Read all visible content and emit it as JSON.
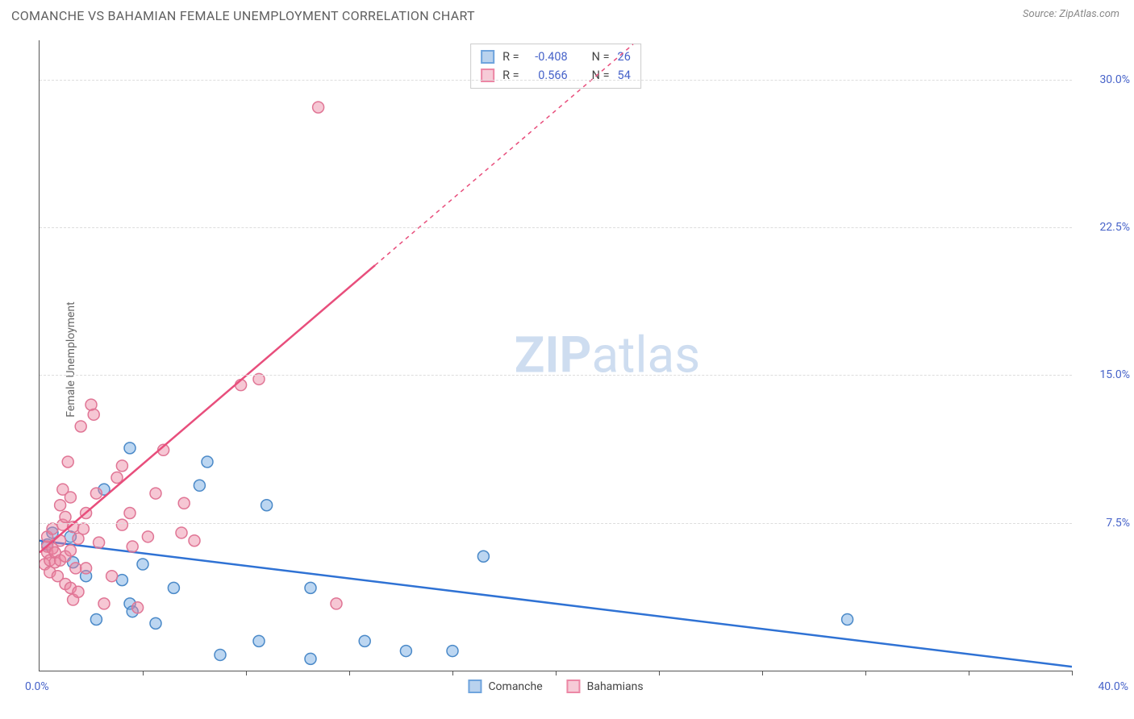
{
  "title": "COMANCHE VS BAHAMIAN FEMALE UNEMPLOYMENT CORRELATION CHART",
  "source": "Source: ZipAtlas.com",
  "yaxis_title": "Female Unemployment",
  "watermark_bold": "ZIP",
  "watermark_light": "atlas",
  "chart": {
    "type": "scatter-with-regression",
    "aspect_w": 1280,
    "aspect_h": 782,
    "background_color": "#ffffff",
    "grid_color": "#dddddd",
    "axis_color": "#555555",
    "tick_label_color": "#4763c9",
    "xlim": [
      0,
      40
    ],
    "ylim": [
      0,
      32
    ],
    "x_origin_label": "0.0%",
    "x_max_label": "40.0%",
    "yticks": [
      {
        "v": 7.5,
        "label": "7.5%"
      },
      {
        "v": 15.0,
        "label": "15.0%"
      },
      {
        "v": 22.5,
        "label": "22.5%"
      },
      {
        "v": 30.0,
        "label": "30.0%"
      }
    ],
    "xtick_positions": [
      4,
      8,
      12,
      16,
      20,
      24,
      28,
      32,
      36,
      40
    ],
    "series": [
      {
        "name": "Comanche",
        "fill": "rgba(106,165,224,0.45)",
        "stroke": "#4a89c8",
        "swatch_fill": "#b9d2ee",
        "swatch_stroke": "#6fa4dd",
        "line_color": "#2f72d4",
        "R_label": "R =",
        "R_value": "-0.408",
        "N_label": "N =",
        "N_value": "26",
        "radius": 7,
        "regression": {
          "x1": 0,
          "y1": 6.6,
          "x2": 40,
          "y2": 0.2,
          "solid_to_x": 40
        },
        "points": [
          [
            0.3,
            6.4
          ],
          [
            0.5,
            7.0
          ],
          [
            1.3,
            5.5
          ],
          [
            1.2,
            6.8
          ],
          [
            1.8,
            4.8
          ],
          [
            2.5,
            9.2
          ],
          [
            2.2,
            2.6
          ],
          [
            3.5,
            11.3
          ],
          [
            3.2,
            4.6
          ],
          [
            3.5,
            3.4
          ],
          [
            3.6,
            3.0
          ],
          [
            4.0,
            5.4
          ],
          [
            4.5,
            2.4
          ],
          [
            5.2,
            4.2
          ],
          [
            6.2,
            9.4
          ],
          [
            6.5,
            10.6
          ],
          [
            7.0,
            0.8
          ],
          [
            8.5,
            1.5
          ],
          [
            8.8,
            8.4
          ],
          [
            10.5,
            0.6
          ],
          [
            10.5,
            4.2
          ],
          [
            12.6,
            1.5
          ],
          [
            14.2,
            1.0
          ],
          [
            16.0,
            1.0
          ],
          [
            17.2,
            5.8
          ],
          [
            31.3,
            2.6
          ]
        ]
      },
      {
        "name": "Bahamians",
        "fill": "rgba(236,130,160,0.45)",
        "stroke": "#e07595",
        "swatch_fill": "#f6cbd7",
        "swatch_stroke": "#ec87a5",
        "line_color": "#e84e7c",
        "R_label": "R =",
        "R_value": "0.566",
        "N_label": "N =",
        "N_value": "54",
        "radius": 7,
        "regression": {
          "x1": 0,
          "y1": 6.0,
          "x2": 23,
          "y2": 31.8,
          "solid_to_x": 13
        },
        "points": [
          [
            0.2,
            5.4
          ],
          [
            0.3,
            6.0
          ],
          [
            0.3,
            6.3
          ],
          [
            0.3,
            6.8
          ],
          [
            0.4,
            5.0
          ],
          [
            0.4,
            5.6
          ],
          [
            0.5,
            6.2
          ],
          [
            0.5,
            7.2
          ],
          [
            0.6,
            5.5
          ],
          [
            0.6,
            6.0
          ],
          [
            0.7,
            4.8
          ],
          [
            0.8,
            5.6
          ],
          [
            0.8,
            6.6
          ],
          [
            0.8,
            8.4
          ],
          [
            0.9,
            7.4
          ],
          [
            0.9,
            9.2
          ],
          [
            1.0,
            4.4
          ],
          [
            1.0,
            5.8
          ],
          [
            1.0,
            7.8
          ],
          [
            1.1,
            10.6
          ],
          [
            1.2,
            4.2
          ],
          [
            1.2,
            6.1
          ],
          [
            1.2,
            8.8
          ],
          [
            1.3,
            3.6
          ],
          [
            1.3,
            7.3
          ],
          [
            1.4,
            5.2
          ],
          [
            1.5,
            6.7
          ],
          [
            1.5,
            4.0
          ],
          [
            1.6,
            12.4
          ],
          [
            1.7,
            7.2
          ],
          [
            1.8,
            8.0
          ],
          [
            1.8,
            5.2
          ],
          [
            2.0,
            13.5
          ],
          [
            2.1,
            13.0
          ],
          [
            2.2,
            9.0
          ],
          [
            2.3,
            6.5
          ],
          [
            2.5,
            3.4
          ],
          [
            2.8,
            4.8
          ],
          [
            3.0,
            9.8
          ],
          [
            3.2,
            10.4
          ],
          [
            3.2,
            7.4
          ],
          [
            3.5,
            8.0
          ],
          [
            3.6,
            6.3
          ],
          [
            3.8,
            3.2
          ],
          [
            4.2,
            6.8
          ],
          [
            4.5,
            9.0
          ],
          [
            4.8,
            11.2
          ],
          [
            5.5,
            7.0
          ],
          [
            5.6,
            8.5
          ],
          [
            6.0,
            6.6
          ],
          [
            7.8,
            14.5
          ],
          [
            8.5,
            14.8
          ],
          [
            10.8,
            28.6
          ],
          [
            11.5,
            3.4
          ]
        ]
      }
    ]
  }
}
